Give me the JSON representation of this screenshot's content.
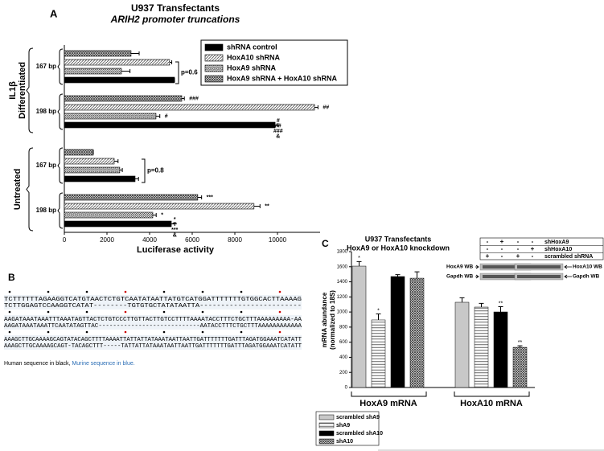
{
  "chart_data": [
    {
      "type": "hbar",
      "panel": "A",
      "title": [
        "U937 Transfectants",
        "ARIH2 promoter truncations"
      ],
      "groups": [
        {
          "label": [
            "IL1β",
            "Differentiated"
          ],
          "categories": [
            "167 bp",
            "198 bp"
          ]
        },
        {
          "label": [
            "Untreated"
          ],
          "categories": [
            "167 bp",
            "198 bp"
          ]
        }
      ],
      "series": [
        {
          "name": "HoxA9 shRNA + HoxA10 shRNA",
          "color": "#444444",
          "pattern": "crosshatch",
          "values": [
            3130,
            5510,
            1360,
            6260
          ],
          "errors": [
            380,
            120,
            0,
            180
          ],
          "annotations": [
            null,
            "###",
            null,
            "***"
          ]
        },
        {
          "name": "HoxA10 shRNA",
          "color": "#555555",
          "pattern": "diagonal",
          "values": [
            4940,
            11740,
            2340,
            8900
          ],
          "errors": [
            100,
            160,
            180,
            280
          ],
          "annotations": [
            null,
            "##",
            null,
            "**"
          ]
        },
        {
          "name": "HoxA9 shRNA",
          "color": "#333333",
          "pattern": "diagonal-dense",
          "values": [
            2680,
            4300,
            2600,
            4150
          ],
          "errors": [
            400,
            180,
            120,
            160
          ],
          "annotations": [
            null,
            "#",
            null,
            "*"
          ]
        },
        {
          "name": "shRNA control",
          "color": "#000000",
          "pattern": "solid",
          "values": [
            5170,
            9890,
            3320,
            5020
          ],
          "errors": [
            0,
            140,
            160,
            160
          ],
          "annotations": [
            null,
            [
              "#",
              "##",
              "###",
              "&"
            ],
            null,
            [
              "*",
              "**",
              "***",
              "&"
            ]
          ]
        }
      ],
      "legend_order": [
        3,
        1,
        2,
        0
      ],
      "brackets": [
        "p=0.6",
        "p=0.8"
      ],
      "xlabel": "Luciferase activity",
      "xlim": [
        0,
        12000
      ],
      "xticks": [
        0,
        2000,
        4000,
        6000,
        8000,
        10000
      ]
    },
    {
      "type": "bar",
      "panel": "C",
      "title": [
        "U937 Transfectants",
        "HoxA9 or HoxA10 knockdown"
      ],
      "categories": [
        "HoxA9 mRNA",
        "HoxA10 mRNA"
      ],
      "series": [
        {
          "name": "scrambled shA9",
          "color": "#c8c8c8",
          "pattern": "solid",
          "values": [
            1608,
            1129
          ],
          "errors": [
            60,
            60
          ],
          "annotations": [
            "*",
            null
          ]
        },
        {
          "name": "shA9",
          "color": "#555555",
          "pattern": "horizontal",
          "values": [
            895,
            1065
          ],
          "errors": [
            80,
            50
          ],
          "annotations": [
            "*",
            null
          ]
        },
        {
          "name": "scrambled shA10",
          "color": "#000000",
          "pattern": "solid",
          "values": [
            1470,
            1001
          ],
          "errors": [
            25,
            70
          ],
          "annotations": [
            null,
            "**"
          ]
        },
        {
          "name": "shA10",
          "color": "#444444",
          "pattern": "crosshatch",
          "values": [
            1448,
            532
          ],
          "errors": [
            85,
            20
          ],
          "annotations": [
            null,
            "**"
          ]
        }
      ],
      "ylabel": [
        "mRNA abundance",
        "(normalized to 18S)"
      ],
      "ylim": [
        0,
        1800
      ],
      "yticks": [
        0,
        200,
        400,
        600,
        800,
        1000,
        1200,
        1400,
        1600,
        1800
      ],
      "inset": {
        "rows": [
          {
            "label": "shHoxA9",
            "cells": [
              "-",
              "+",
              "-",
              "-"
            ]
          },
          {
            "label": "shHoxA10",
            "cells": [
              "-",
              "-",
              "-",
              "+"
            ]
          },
          {
            "label": "scrambled shRNA",
            "cells": [
              "+",
              "-",
              "+",
              "-"
            ]
          }
        ],
        "bands": [
          "HoxA9 WB",
          "Gapdh WB",
          "HoxA10 WB",
          "Gapdh WB"
        ]
      }
    }
  ],
  "panel_b": {
    "label": "B",
    "blocks": [
      {
        "human": "TCTTTTTTAGAAGGTCATGTAACTCTGTCAATATAATTATGTCATGGATTTTTTTGTGGCACTTAAAAG",
        "mouse": "TCTTGGAGTCCAAGGTCATAT--------TGTGTGCTATATAATTA------------------------"
      },
      {
        "human": "AAGATAAATAAATTTAAATAGTTACTCTGTCCCTTGTTACTTGTCCTTTTAAAATACCTTTCTGCTTTAAAAAAAAA-AA",
        "mouse": "AAGATAAATAAATTCAATATAGTTAC----------------------------AATACCTTTCTGCTTTAAAAAAAAAAAA"
      },
      {
        "human": "AAAGCTTGCAAAAGCAGTATACAGCTTTTAAAATTATTATTATAAATAATTAATTGATTTTTTTGATTTAGATGGAAATCATATT",
        "mouse": "AAAGCTTGCAAAAGCAGT-TACAGCTTT-----TATTATTATAAATAATTAATTGATTTTTTTGATTTAGATGGAAATCATATT"
      }
    ],
    "legend": [
      "Human sequence in black,",
      "Murine sequence in blue."
    ]
  }
}
